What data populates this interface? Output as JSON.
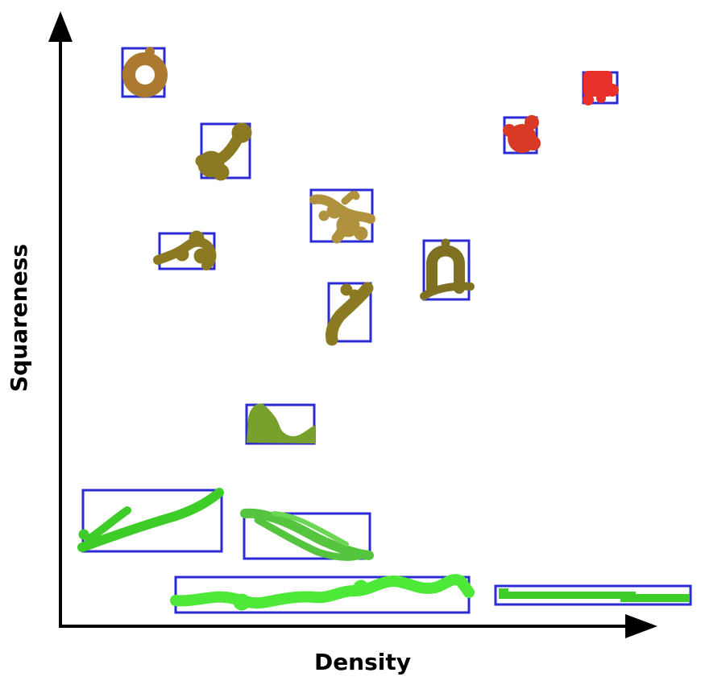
{
  "axes": {
    "x_label": "Density",
    "y_label": "Squareness"
  },
  "colors": {
    "axis": "#000000",
    "box": "#2b2bd6",
    "red": "#e8302a",
    "red_dark": "#d93a26",
    "tan": "#ab7a30",
    "olive": "#8c7a22",
    "olive_dark": "#7f7022",
    "sand": "#b0923e",
    "olive_green": "#77a02c",
    "green": "#3ecc28",
    "green_light": "#4ee838",
    "green_mid": "#55c43e"
  },
  "shapes": [
    {
      "name": "ring-blob",
      "color": "tan"
    },
    {
      "name": "curled-blob",
      "color": "olive"
    },
    {
      "name": "branch-blob",
      "color": "sand"
    },
    {
      "name": "horizontal-squiggle-blob",
      "color": "olive"
    },
    {
      "name": "arch-blob",
      "color": "olive_dark"
    },
    {
      "name": "diagonal-stroke-blob",
      "color": "olive"
    },
    {
      "name": "small-red-blob",
      "color": "red_dark"
    },
    {
      "name": "top-red-blob",
      "color": "red"
    },
    {
      "name": "hump-blob",
      "color": "olive_green"
    },
    {
      "name": "rising-line-blob",
      "color": "green"
    },
    {
      "name": "diagonal-loop-blob",
      "color": "green_mid"
    },
    {
      "name": "wavy-line-blob",
      "color": "green_light"
    },
    {
      "name": "flat-bar-blob",
      "color": "green"
    }
  ]
}
